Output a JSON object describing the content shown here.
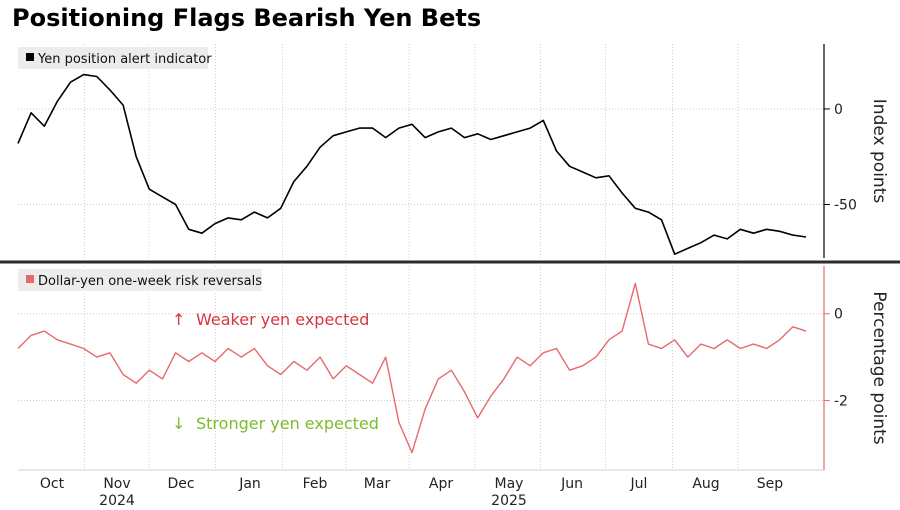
{
  "title": "Positioning Flags Bearish Yen Bets",
  "colors": {
    "top_line": "#000000",
    "bottom_line": "#e8696b",
    "weaker": "#d9363e",
    "stronger": "#7dbb2a",
    "grid": "#cfcfcf",
    "divider": "#2b2b2b"
  },
  "annotations": {
    "weaker": {
      "arrow": "↑",
      "text": "Weaker yen expected"
    },
    "stronger": {
      "arrow": "↓",
      "text": "Stronger yen expected"
    }
  },
  "x_axis": {
    "months": [
      "Oct",
      "Nov",
      "Dec",
      "Jan",
      "Feb",
      "Mar",
      "Apr",
      "May",
      "Jun",
      "Jul",
      "Aug",
      "Sep"
    ],
    "years": [
      {
        "label": "2024",
        "under": "Nov"
      },
      {
        "label": "2025",
        "under": "May"
      }
    ]
  },
  "chart_data": [
    {
      "type": "line",
      "legend": "Yen position alert indicator",
      "ylabel": "Index points",
      "yticks": [
        0,
        -50
      ],
      "ylim": [
        -78,
        34
      ],
      "grid": true,
      "x": [
        0,
        1,
        2,
        3,
        4,
        5,
        6,
        7,
        8,
        9,
        10,
        11,
        12,
        13,
        14,
        15,
        16,
        17,
        18,
        19,
        20,
        21,
        22,
        23,
        24,
        25,
        26,
        27,
        28,
        29,
        30,
        31,
        32,
        33,
        34,
        35,
        36,
        37,
        38,
        39,
        40,
        41,
        42,
        43,
        44,
        45,
        46,
        47,
        48,
        49,
        50,
        51,
        52,
        53,
        54,
        55,
        56,
        57,
        58,
        59,
        60
      ],
      "values": [
        -18,
        -2,
        -9,
        4,
        14,
        18,
        17,
        10,
        2,
        -25,
        -42,
        -46,
        -50,
        -63,
        -65,
        -60,
        -57,
        -58,
        -54,
        -57,
        -52,
        -38,
        -30,
        -20,
        -14,
        -12,
        -10,
        -10,
        -15,
        -10,
        -8,
        -15,
        -12,
        -10,
        -15,
        -13,
        -16,
        -14,
        -12,
        -10,
        -6,
        -22,
        -30,
        -33,
        -36,
        -35,
        -44,
        -52,
        -54,
        -58,
        -76,
        -73,
        -70,
        -66,
        -68,
        -63,
        -65,
        -63,
        -64,
        -66,
        -67
      ]
    },
    {
      "type": "line",
      "legend": "Dollar-yen one-week risk reversals",
      "ylabel": "Percentage points",
      "yticks": [
        0,
        -2
      ],
      "ylim": [
        -3.6,
        1.1
      ],
      "grid": true,
      "x": [
        0,
        1,
        2,
        3,
        4,
        5,
        6,
        7,
        8,
        9,
        10,
        11,
        12,
        13,
        14,
        15,
        16,
        17,
        18,
        19,
        20,
        21,
        22,
        23,
        24,
        25,
        26,
        27,
        28,
        29,
        30,
        31,
        32,
        33,
        34,
        35,
        36,
        37,
        38,
        39,
        40,
        41,
        42,
        43,
        44,
        45,
        46,
        47,
        48,
        49,
        50,
        51,
        52,
        53,
        54,
        55,
        56,
        57,
        58,
        59,
        60
      ],
      "values": [
        -0.8,
        -0.5,
        -0.4,
        -0.6,
        -0.7,
        -0.8,
        -1.0,
        -0.9,
        -1.4,
        -1.6,
        -1.3,
        -1.5,
        -0.9,
        -1.1,
        -0.9,
        -1.1,
        -0.8,
        -1.0,
        -0.8,
        -1.2,
        -1.4,
        -1.1,
        -1.3,
        -1.0,
        -1.5,
        -1.2,
        -1.4,
        -1.6,
        -1.0,
        -2.5,
        -3.2,
        -2.2,
        -1.5,
        -1.3,
        -1.8,
        -2.4,
        -1.9,
        -1.5,
        -1.0,
        -1.2,
        -0.9,
        -0.8,
        -1.3,
        -1.2,
        -1.0,
        -0.6,
        -0.4,
        0.7,
        -0.7,
        -0.8,
        -0.6,
        -1.0,
        -0.7,
        -0.8,
        -0.6,
        -0.8,
        -0.7,
        -0.8,
        -0.6,
        -0.3,
        -0.4
      ]
    }
  ]
}
